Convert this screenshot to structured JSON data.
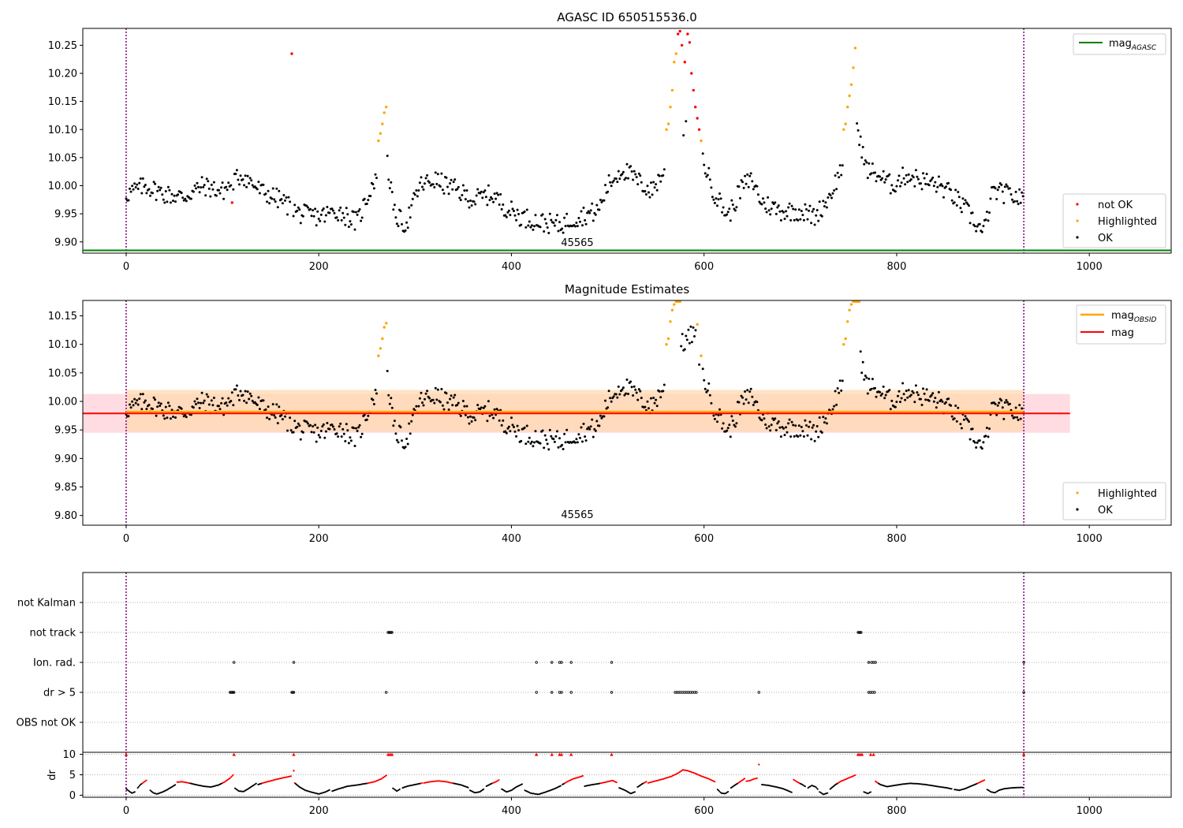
{
  "colors": {
    "ok": "#000000",
    "not_ok": "#ff0000",
    "highlight": "#ffa500",
    "agasc_line": "#008000",
    "obsid_line": "#ffa500",
    "mag_line": "#ff0000",
    "band_red": "#ffc0cb",
    "band_orange": "#ffdab0",
    "vline": "#800080",
    "grid": "#b0b0b0"
  },
  "chart_data": [
    {
      "type": "scatter",
      "title": "AGASC ID 650515536.0",
      "annotation": "45565",
      "xlim": [
        -45,
        1085
      ],
      "ylim": [
        9.88,
        10.28
      ],
      "xticks": [
        0,
        200,
        400,
        600,
        800,
        1000
      ],
      "yticks": [
        9.9,
        9.95,
        10.0,
        10.05,
        10.1,
        10.15,
        10.2,
        10.25
      ],
      "ytick_labels": [
        "9.90",
        "9.95",
        "10.00",
        "10.05",
        "10.10",
        "10.15",
        "10.20",
        "10.25"
      ],
      "vlines": [
        0,
        932
      ],
      "hline": {
        "name": "mag",
        "subscript": "AGASC",
        "y": 9.885
      },
      "legend_lines": [
        {
          "name": "mag",
          "subscript": "AGASC"
        }
      ],
      "legend_points": [
        "not OK",
        "Highlighted",
        "OK"
      ],
      "series": [
        {
          "name": "OK",
          "role": "base",
          "x_range": [
            0,
            932
          ]
        },
        {
          "name": "Highlighted",
          "x": [
            262,
            264,
            266,
            268,
            270,
            561,
            563,
            565,
            567,
            569,
            571,
            597,
            745,
            747,
            749,
            751,
            753,
            755,
            757
          ],
          "y": [
            10.08,
            10.093,
            10.11,
            10.13,
            10.14,
            10.1,
            10.11,
            10.14,
            10.17,
            10.22,
            10.235,
            10.08,
            10.1,
            10.11,
            10.14,
            10.16,
            10.18,
            10.21,
            10.245
          ]
        },
        {
          "name": "not OK",
          "x": [
            172,
            110,
            573,
            575,
            577,
            580,
            583,
            585,
            587,
            589,
            591,
            593,
            595
          ],
          "y": [
            10.235,
            9.97,
            10.27,
            10.275,
            10.25,
            10.22,
            10.27,
            10.255,
            10.2,
            10.17,
            10.14,
            10.12,
            10.1
          ]
        }
      ]
    },
    {
      "type": "scatter",
      "title": "Magnitude Estimates",
      "annotation": "45565",
      "xlim": [
        -45,
        1085
      ],
      "ylim": [
        9.783,
        10.177
      ],
      "xticks": [
        0,
        200,
        400,
        600,
        800,
        1000
      ],
      "yticks": [
        9.8,
        9.85,
        9.9,
        9.95,
        10.0,
        10.05,
        10.1,
        10.15
      ],
      "ytick_labels": [
        "9.80",
        "9.85",
        "9.90",
        "9.95",
        "10.00",
        "10.05",
        "10.10",
        "10.15"
      ],
      "vlines": [
        0,
        932
      ],
      "mag": {
        "name": "mag",
        "y": 9.979,
        "band": [
          9.945,
          10.013
        ],
        "x_range": [
          -45,
          980
        ]
      },
      "mag_obsid": {
        "name": "mag",
        "subscript": "OBSID",
        "y": 9.982,
        "band": [
          9.947,
          10.02
        ],
        "x_range": [
          0,
          932
        ]
      },
      "legend_lines": [
        {
          "name": "mag",
          "subscript": "OBSID"
        },
        {
          "name": "mag",
          "subscript": ""
        }
      ],
      "legend_points": [
        "Highlighted",
        "OK"
      ],
      "series": [
        {
          "name": "OK",
          "role": "base",
          "x_range": [
            0,
            932
          ]
        },
        {
          "name": "Highlighted",
          "x": [
            262,
            264,
            266,
            268,
            270,
            561,
            563,
            565,
            567,
            569,
            571,
            573,
            575,
            593,
            597,
            745,
            747,
            749,
            751,
            753,
            755,
            757,
            759,
            761
          ],
          "y": [
            10.08,
            10.093,
            10.11,
            10.13,
            10.137,
            10.1,
            10.11,
            10.14,
            10.16,
            10.17,
            10.175,
            10.175,
            10.175,
            10.135,
            10.08,
            10.1,
            10.11,
            10.14,
            10.16,
            10.17,
            10.175,
            10.175,
            10.175,
            10.175
          ]
        }
      ]
    },
    {
      "type": "scatter",
      "title": "",
      "xlim": [
        -45,
        1085
      ],
      "category_labels": [
        "not Kalman",
        "not track",
        "Ion. rad.",
        "dr > 5",
        "OBS not OK"
      ],
      "flags": {
        "not Kalman": [],
        "not track": [
          272,
          273,
          274,
          275,
          276,
          760,
          761,
          762,
          763
        ],
        "Ion. rad.": [
          112,
          174,
          426,
          442,
          450,
          452,
          462,
          504,
          771,
          774,
          776,
          778,
          932
        ],
        "dr > 5": [
          108,
          109,
          110,
          111,
          112,
          172,
          173,
          174,
          270,
          426,
          442,
          450,
          452,
          462,
          504,
          570,
          572,
          574,
          576,
          578,
          580,
          582,
          584,
          586,
          588,
          590,
          592,
          657,
          771,
          773,
          775,
          777,
          932
        ],
        "OBS not OK": []
      },
      "vlines": [
        0,
        932
      ]
    },
    {
      "type": "scatter",
      "ylabel": "dr",
      "xlim": [
        -45,
        1085
      ],
      "ylim": [
        -0.5,
        10.5
      ],
      "xticks": [
        0,
        200,
        400,
        600,
        800,
        1000
      ],
      "yticks": [
        0,
        5,
        10
      ],
      "ytick_labels": [
        "0",
        "5",
        "10"
      ],
      "vlines": [
        0,
        932
      ],
      "threshold": 5,
      "clip_markers_x": [
        0,
        112,
        174,
        272,
        274,
        276,
        426,
        442,
        450,
        452,
        462,
        504,
        760,
        762,
        764,
        773,
        776,
        932
      ],
      "outliers": [
        {
          "x": 174,
          "y": 6.0
        },
        {
          "x": 657,
          "y": 7.5
        }
      ],
      "series": [
        {
          "name": "dr",
          "x_range": [
            0,
            932
          ],
          "segments": [
            {
              "x": [
                0,
                3,
                6,
                10
              ],
              "y": [
                1.6,
                1.0,
                0.5,
                0.9
              ]
            },
            {
              "x": [
                12,
                15,
                19,
                22
              ],
              "y": [
                1.8,
                2.6,
                3.3,
                3.8
              ]
            },
            {
              "x": [
                25,
                28,
                32,
                38,
                43,
                48,
                52
              ],
              "y": [
                1.2,
                0.6,
                0.3,
                0.8,
                1.4,
                2.1,
                2.7
              ]
            },
            {
              "x": [
                53,
                58,
                65,
                72,
                80,
                88,
                96,
                102,
                108,
                112
              ],
              "y": [
                3.2,
                3.3,
                3.0,
                2.6,
                2.2,
                2.0,
                2.5,
                3.2,
                4.2,
                5.2
              ]
            },
            {
              "x": [
                113,
                117,
                122,
                127,
                132,
                136
              ],
              "y": [
                1.7,
                1.0,
                0.9,
                1.6,
                2.4,
                3.0
              ]
            },
            {
              "x": [
                137,
                142,
                150,
                158,
                166,
                172
              ],
              "y": [
                2.6,
                3.0,
                3.5,
                4.0,
                4.4,
                4.7
              ]
            },
            {
              "x": [
                175,
                180,
                186,
                193,
                200,
                207,
                212
              ],
              "y": [
                3.0,
                2.0,
                1.2,
                0.7,
                0.3,
                0.8,
                1.4
              ]
            },
            {
              "x": [
                214,
                220,
                230,
                240,
                250,
                258,
                265,
                271
              ],
              "y": [
                1.0,
                1.5,
                2.2,
                2.5,
                2.9,
                3.3,
                4.0,
                5.0
              ]
            },
            {
              "x": [
                277,
                281,
                285
              ],
              "y": [
                1.7,
                1.0,
                1.6
              ]
            },
            {
              "x": [
                287,
                292,
                300,
                308
              ],
              "y": [
                1.8,
                2.2,
                2.6,
                3.0
              ]
            },
            {
              "x": [
                309,
                316,
                324,
                332,
                340,
                348,
                356
              ],
              "y": [
                3.0,
                3.3,
                3.5,
                3.3,
                2.9,
                2.5,
                1.8
              ]
            },
            {
              "x": [
                357,
                362,
                367,
                372
              ],
              "y": [
                1.2,
                0.6,
                0.8,
                1.6
              ]
            },
            {
              "x": [
                374,
                379,
                385,
                388
              ],
              "y": [
                2.2,
                2.8,
                3.4,
                3.9
              ]
            },
            {
              "x": [
                390,
                395,
                400,
                405,
                412
              ],
              "y": [
                1.5,
                0.8,
                1.2,
                2.0,
                2.8
              ]
            },
            {
              "x": [
                414,
                420,
                428,
                436,
                445,
                452
              ],
              "y": [
                1.2,
                0.5,
                0.2,
                0.8,
                1.6,
                2.4
              ]
            },
            {
              "x": [
                453,
                458,
                464,
                470,
                475
              ],
              "y": [
                2.6,
                3.3,
                4.0,
                4.4,
                4.8
              ]
            },
            {
              "x": [
                476,
                482,
                490,
                498,
                505,
                510
              ],
              "y": [
                2.2,
                2.5,
                2.8,
                3.2,
                3.6,
                3.0
              ]
            },
            {
              "x": [
                512,
                518,
                524,
                529
              ],
              "y": [
                1.8,
                1.2,
                0.4,
                0.9
              ]
            },
            {
              "x": [
                531,
                536,
                541
              ],
              "y": [
                2.0,
                2.8,
                3.4
              ]
            },
            {
              "x": [
                542,
                550,
                558,
                566,
                573,
                578,
                583,
                590,
                598,
                605,
                612
              ],
              "y": [
                3.0,
                3.5,
                4.0,
                4.6,
                5.4,
                6.2,
                6.0,
                5.4,
                4.6,
                4.0,
                3.2
              ]
            },
            {
              "x": [
                614,
                618,
                622,
                626
              ],
              "y": [
                1.4,
                0.5,
                0.4,
                1.0
              ]
            },
            {
              "x": [
                628,
                633,
                638,
                643
              ],
              "y": [
                1.8,
                2.6,
                3.4,
                4.2
              ]
            },
            {
              "x": [
                644,
                648,
                652,
                656
              ],
              "y": [
                3.4,
                3.6,
                4.0,
                4.2
              ]
            },
            {
              "x": [
                660,
                667,
                675,
                682,
                688,
                692
              ],
              "y": [
                2.6,
                2.4,
                2.0,
                1.6,
                1.0,
                0.6
              ]
            },
            {
              "x": [
                693,
                697,
                702,
                706
              ],
              "y": [
                3.8,
                3.2,
                2.6,
                2.0
              ]
            },
            {
              "x": [
                708,
                712,
                716,
                719
              ],
              "y": [
                1.8,
                2.4,
                2.0,
                1.2
              ]
            },
            {
              "x": [
                720,
                724,
                729
              ],
              "y": [
                0.8,
                0.2,
                0.6
              ]
            },
            {
              "x": [
                731,
                736,
                742,
                748,
                754,
                758
              ],
              "y": [
                1.5,
                2.5,
                3.4,
                4.0,
                4.6,
                5.0
              ]
            },
            {
              "x": [
                766,
                770,
                774
              ],
              "y": [
                0.8,
                0.4,
                0.9
              ]
            },
            {
              "x": [
                778,
                783,
                790,
                798,
                806,
                814,
                822,
                830,
                838,
                846,
                852,
                858
              ],
              "y": [
                3.4,
                2.6,
                2.1,
                2.4,
                2.7,
                2.9,
                2.8,
                2.6,
                2.3,
                2.0,
                1.8,
                1.5
              ]
            },
            {
              "x": [
                860,
                865,
                871,
                878,
                885,
                892
              ],
              "y": [
                1.4,
                1.2,
                1.6,
                2.3,
                3.0,
                3.8
              ]
            },
            {
              "x": [
                894,
                898,
                902,
                906,
                912,
                920,
                928,
                932
              ],
              "y": [
                1.4,
                0.8,
                0.6,
                1.2,
                1.6,
                1.8,
                1.9,
                1.9
              ]
            }
          ]
        }
      ]
    }
  ]
}
